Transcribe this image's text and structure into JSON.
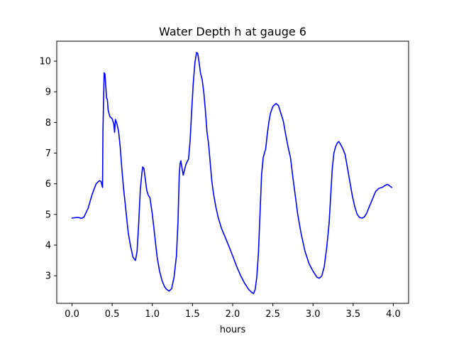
{
  "chart_data": {
    "type": "line",
    "title": "Water Depth h at gauge 6",
    "xlabel": "hours",
    "ylabel": "",
    "xlim": [
      -0.19,
      4.19
    ],
    "ylim": [
      2.1,
      10.65
    ],
    "xticks": [
      0.0,
      0.5,
      1.0,
      1.5,
      2.0,
      2.5,
      3.0,
      3.5,
      4.0
    ],
    "xtick_labels": [
      "0.0",
      "0.5",
      "1.0",
      "1.5",
      "2.0",
      "2.5",
      "3.0",
      "3.5",
      "4.0"
    ],
    "yticks": [
      3,
      4,
      5,
      6,
      7,
      8,
      9,
      10
    ],
    "ytick_labels": [
      "3",
      "4",
      "5",
      "6",
      "7",
      "8",
      "9",
      "10"
    ],
    "grid": false,
    "legend": "none",
    "series": [
      {
        "color": "#0000ff",
        "points": [
          [
            0.0,
            4.88
          ],
          [
            0.05,
            4.9
          ],
          [
            0.08,
            4.9
          ],
          [
            0.12,
            4.87
          ],
          [
            0.15,
            4.92
          ],
          [
            0.2,
            5.2
          ],
          [
            0.25,
            5.65
          ],
          [
            0.3,
            6.0
          ],
          [
            0.34,
            6.1
          ],
          [
            0.36,
            6.08
          ],
          [
            0.38,
            5.88
          ],
          [
            0.385,
            7.7
          ],
          [
            0.4,
            9.62
          ],
          [
            0.41,
            9.58
          ],
          [
            0.42,
            9.2
          ],
          [
            0.43,
            8.8
          ],
          [
            0.44,
            8.75
          ],
          [
            0.45,
            8.4
          ],
          [
            0.47,
            8.2
          ],
          [
            0.5,
            8.12
          ],
          [
            0.52,
            7.95
          ],
          [
            0.53,
            7.68
          ],
          [
            0.54,
            8.1
          ],
          [
            0.56,
            7.95
          ],
          [
            0.58,
            7.7
          ],
          [
            0.6,
            7.2
          ],
          [
            0.62,
            6.5
          ],
          [
            0.64,
            5.9
          ],
          [
            0.66,
            5.4
          ],
          [
            0.68,
            4.9
          ],
          [
            0.7,
            4.4
          ],
          [
            0.73,
            3.95
          ],
          [
            0.76,
            3.6
          ],
          [
            0.79,
            3.5
          ],
          [
            0.81,
            3.8
          ],
          [
            0.83,
            4.7
          ],
          [
            0.85,
            5.8
          ],
          [
            0.87,
            6.35
          ],
          [
            0.88,
            6.55
          ],
          [
            0.895,
            6.5
          ],
          [
            0.91,
            6.2
          ],
          [
            0.93,
            5.8
          ],
          [
            0.95,
            5.62
          ],
          [
            0.97,
            5.55
          ],
          [
            1.0,
            5.0
          ],
          [
            1.03,
            4.3
          ],
          [
            1.06,
            3.6
          ],
          [
            1.09,
            3.15
          ],
          [
            1.12,
            2.85
          ],
          [
            1.15,
            2.65
          ],
          [
            1.18,
            2.55
          ],
          [
            1.21,
            2.5
          ],
          [
            1.24,
            2.58
          ],
          [
            1.27,
            2.95
          ],
          [
            1.3,
            3.65
          ],
          [
            1.32,
            4.8
          ],
          [
            1.335,
            6.3
          ],
          [
            1.345,
            6.65
          ],
          [
            1.355,
            6.75
          ],
          [
            1.37,
            6.5
          ],
          [
            1.385,
            6.28
          ],
          [
            1.4,
            6.45
          ],
          [
            1.42,
            6.65
          ],
          [
            1.45,
            6.8
          ],
          [
            1.47,
            7.4
          ],
          [
            1.49,
            8.4
          ],
          [
            1.51,
            9.3
          ],
          [
            1.53,
            9.95
          ],
          [
            1.55,
            10.28
          ],
          [
            1.565,
            10.25
          ],
          [
            1.58,
            10.0
          ],
          [
            1.6,
            9.6
          ],
          [
            1.62,
            9.4
          ],
          [
            1.64,
            9.0
          ],
          [
            1.66,
            8.4
          ],
          [
            1.68,
            7.7
          ],
          [
            1.7,
            7.3
          ],
          [
            1.72,
            6.7
          ],
          [
            1.74,
            6.1
          ],
          [
            1.76,
            5.7
          ],
          [
            1.79,
            5.25
          ],
          [
            1.82,
            4.9
          ],
          [
            1.86,
            4.55
          ],
          [
            1.9,
            4.3
          ],
          [
            1.95,
            3.98
          ],
          [
            2.0,
            3.65
          ],
          [
            2.05,
            3.3
          ],
          [
            2.1,
            3.0
          ],
          [
            2.15,
            2.75
          ],
          [
            2.2,
            2.55
          ],
          [
            2.24,
            2.45
          ],
          [
            2.26,
            2.42
          ],
          [
            2.28,
            2.55
          ],
          [
            2.3,
            2.95
          ],
          [
            2.32,
            3.7
          ],
          [
            2.34,
            5.0
          ],
          [
            2.36,
            6.3
          ],
          [
            2.38,
            6.85
          ],
          [
            2.4,
            7.05
          ],
          [
            2.41,
            7.12
          ],
          [
            2.43,
            7.6
          ],
          [
            2.45,
            8.0
          ],
          [
            2.47,
            8.3
          ],
          [
            2.5,
            8.52
          ],
          [
            2.54,
            8.62
          ],
          [
            2.57,
            8.55
          ],
          [
            2.6,
            8.3
          ],
          [
            2.63,
            8.05
          ],
          [
            2.66,
            7.6
          ],
          [
            2.69,
            7.2
          ],
          [
            2.72,
            6.85
          ],
          [
            2.75,
            6.2
          ],
          [
            2.78,
            5.6
          ],
          [
            2.81,
            5.0
          ],
          [
            2.85,
            4.4
          ],
          [
            2.9,
            3.8
          ],
          [
            2.95,
            3.4
          ],
          [
            3.0,
            3.15
          ],
          [
            3.05,
            2.95
          ],
          [
            3.08,
            2.92
          ],
          [
            3.11,
            3.0
          ],
          [
            3.14,
            3.3
          ],
          [
            3.17,
            3.9
          ],
          [
            3.2,
            4.7
          ],
          [
            3.22,
            5.6
          ],
          [
            3.24,
            6.5
          ],
          [
            3.26,
            7.0
          ],
          [
            3.28,
            7.2
          ],
          [
            3.3,
            7.32
          ],
          [
            3.32,
            7.38
          ],
          [
            3.34,
            7.3
          ],
          [
            3.37,
            7.15
          ],
          [
            3.4,
            6.95
          ],
          [
            3.43,
            6.5
          ],
          [
            3.46,
            6.05
          ],
          [
            3.49,
            5.6
          ],
          [
            3.52,
            5.25
          ],
          [
            3.55,
            5.0
          ],
          [
            3.58,
            4.9
          ],
          [
            3.61,
            4.88
          ],
          [
            3.64,
            4.92
          ],
          [
            3.67,
            5.05
          ],
          [
            3.7,
            5.25
          ],
          [
            3.74,
            5.5
          ],
          [
            3.78,
            5.75
          ],
          [
            3.82,
            5.85
          ],
          [
            3.86,
            5.88
          ],
          [
            3.9,
            5.95
          ],
          [
            3.93,
            5.98
          ],
          [
            3.96,
            5.92
          ],
          [
            3.98,
            5.88
          ]
        ]
      }
    ]
  }
}
